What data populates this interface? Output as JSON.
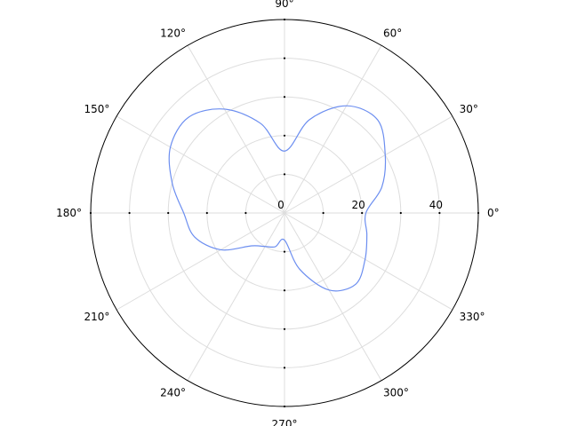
{
  "chart_data": {
    "type": "line",
    "projection": "polar",
    "title": "",
    "xlabel": "",
    "ylabel": "",
    "angular_ticks_deg": [
      0,
      30,
      60,
      90,
      120,
      150,
      180,
      210,
      240,
      270,
      300,
      330
    ],
    "angular_tick_labels": [
      "0°",
      "30°",
      "60°",
      "90°",
      "120°",
      "150°",
      "180°",
      "210°",
      "240°",
      "270°",
      "300°",
      "330°"
    ],
    "radial_range": [
      0,
      50
    ],
    "radial_grid_values": [
      10,
      20,
      30,
      40
    ],
    "radial_tick_labels": [
      {
        "value": 0,
        "label": "0"
      },
      {
        "value": 20,
        "label": "20"
      },
      {
        "value": 40,
        "label": "40"
      }
    ],
    "grid": true,
    "legend": "none",
    "series": [
      {
        "color": "#6c8ef0",
        "theta_deg": [
          0,
          15,
          30,
          45,
          60,
          75,
          90,
          105,
          120,
          135,
          150,
          165,
          180,
          195,
          210,
          225,
          240,
          255,
          270,
          285,
          300,
          315,
          330,
          345
        ],
        "r": [
          21,
          26,
          30,
          34,
          32,
          25,
          16,
          24,
          31,
          35,
          34,
          30,
          26,
          24,
          19,
          12,
          10,
          9,
          7,
          15,
          23,
          26,
          24,
          22
        ]
      }
    ]
  }
}
